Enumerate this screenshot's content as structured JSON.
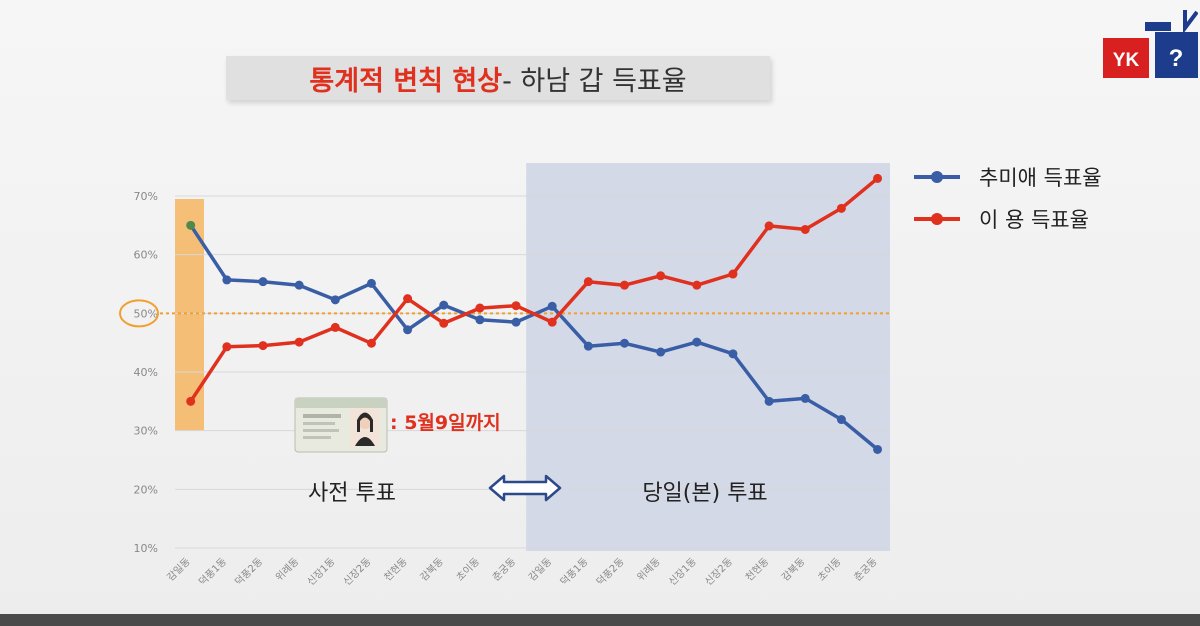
{
  "title": {
    "main": "통계적 변칙 현상",
    "sub": " - 하남 갑 득표율"
  },
  "logo": {
    "left_text": "YK",
    "right_text": "?"
  },
  "chart_data": {
    "type": "line",
    "categories": [
      "감일동",
      "덕풍1동",
      "덕풍2동",
      "위례동",
      "신장1동",
      "신장2동",
      "천현동",
      "감북동",
      "초이동",
      "춘궁동",
      "감일동",
      "덕풍1동",
      "덕풍2동",
      "위례동",
      "신장1동",
      "신장2동",
      "천현동",
      "감북동",
      "초이동",
      "춘궁동"
    ],
    "series": [
      {
        "name": "추미애 득표율",
        "color": "#3a5ea6",
        "values": [
          65,
          55.7,
          55.4,
          54.8,
          52.3,
          55.1,
          47.2,
          51.4,
          48.9,
          48.5,
          51.2,
          44.4,
          44.9,
          43.4,
          45.1,
          43.1,
          35.0,
          35.5,
          31.9,
          26.8
        ]
      },
      {
        "name": "이 용  득표율",
        "color": "#e0301e",
        "values": [
          35,
          44.3,
          44.5,
          45.1,
          47.6,
          44.9,
          52.5,
          48.3,
          50.9,
          51.3,
          48.5,
          55.4,
          54.8,
          56.4,
          54.8,
          56.7,
          64.9,
          64.3,
          67.9,
          73.0
        ]
      }
    ],
    "ylim": [
      10,
      70
    ],
    "yticks": [
      {
        "value": 70,
        "label": "70%"
      },
      {
        "value": 60,
        "label": "60%"
      },
      {
        "value": 50,
        "label": "50%"
      },
      {
        "value": 40,
        "label": "40%"
      },
      {
        "value": 30,
        "label": "30%"
      },
      {
        "value": 20,
        "label": "20%"
      },
      {
        "value": 10,
        "label": "10%"
      }
    ],
    "reference_line": 50,
    "legend_position": "top-right",
    "grid": true,
    "annotations": {
      "early_vote_label": "사전 투표",
      "election_day_label": "당일(본) 투표",
      "id_card_note": ": 5월9일까지"
    },
    "colors": {
      "highlight_band": "#f4b560",
      "election_day_band": "#cfd6e6",
      "reference_line": "#f0a030",
      "arrow": "#2c4a8a"
    }
  }
}
